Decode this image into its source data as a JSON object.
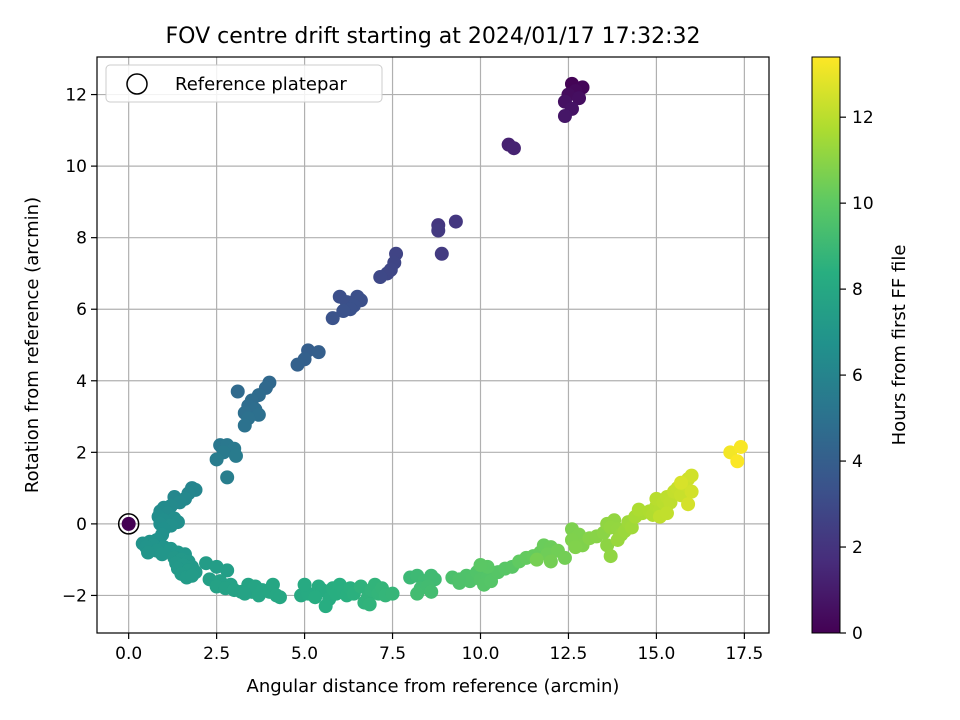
{
  "chart_data": {
    "type": "scatter",
    "title": "FOV centre drift starting at 2024/01/17 17:32:32",
    "xlabel": "Angular distance from reference (arcmin)",
    "ylabel": "Rotation from reference (arcmin)",
    "xlim": [
      -0.9,
      18.2
    ],
    "ylim": [
      -3.05,
      13.05
    ],
    "xticks": [
      0.0,
      2.5,
      5.0,
      7.5,
      10.0,
      12.5,
      15.0,
      17.5
    ],
    "xtick_labels": [
      "0.0",
      "2.5",
      "5.0",
      "7.5",
      "10.0",
      "12.5",
      "15.0",
      "17.5"
    ],
    "yticks": [
      -2,
      0,
      2,
      4,
      6,
      8,
      10,
      12
    ],
    "ytick_labels": [
      "−2",
      "0",
      "2",
      "4",
      "6",
      "8",
      "10",
      "12"
    ],
    "grid": true,
    "legend": {
      "placement": "top-left",
      "entries": [
        "Reference platepar"
      ]
    },
    "colorbar": {
      "label": "Hours from first FF file",
      "colormap": "viridis",
      "range": [
        0,
        13.4
      ],
      "ticks": [
        0,
        2,
        4,
        6,
        8,
        10,
        12
      ],
      "tick_labels": [
        "0",
        "2",
        "4",
        "6",
        "8",
        "10",
        "12"
      ]
    },
    "reference_point": {
      "x": 0.0,
      "y": 0.0,
      "hours": 0.0
    },
    "points": [
      {
        "x": 12.6,
        "y": 12.3,
        "h": 0.1
      },
      {
        "x": 12.9,
        "y": 12.2,
        "h": 0.2
      },
      {
        "x": 12.7,
        "y": 12.1,
        "h": 0.3
      },
      {
        "x": 12.5,
        "y": 12.0,
        "h": 0.4
      },
      {
        "x": 12.8,
        "y": 11.9,
        "h": 0.5
      },
      {
        "x": 12.4,
        "y": 11.8,
        "h": 0.6
      },
      {
        "x": 12.6,
        "y": 11.6,
        "h": 0.7
      },
      {
        "x": 12.4,
        "y": 11.4,
        "h": 0.8
      },
      {
        "x": 10.8,
        "y": 10.6,
        "h": 1.2
      },
      {
        "x": 10.95,
        "y": 10.5,
        "h": 1.3
      },
      {
        "x": 8.8,
        "y": 8.35,
        "h": 2.1
      },
      {
        "x": 9.3,
        "y": 8.45,
        "h": 2.15
      },
      {
        "x": 8.8,
        "y": 8.2,
        "h": 2.2
      },
      {
        "x": 8.9,
        "y": 7.55,
        "h": 2.3
      },
      {
        "x": 7.6,
        "y": 7.55,
        "h": 2.7
      },
      {
        "x": 7.55,
        "y": 7.3,
        "h": 2.75
      },
      {
        "x": 7.45,
        "y": 7.1,
        "h": 2.8
      },
      {
        "x": 7.35,
        "y": 7.0,
        "h": 2.85
      },
      {
        "x": 7.15,
        "y": 6.9,
        "h": 2.9
      },
      {
        "x": 6.0,
        "y": 6.35,
        "h": 3.2
      },
      {
        "x": 6.5,
        "y": 6.35,
        "h": 3.22
      },
      {
        "x": 6.2,
        "y": 6.2,
        "h": 3.25
      },
      {
        "x": 6.6,
        "y": 6.25,
        "h": 3.28
      },
      {
        "x": 6.4,
        "y": 6.1,
        "h": 3.3
      },
      {
        "x": 6.3,
        "y": 6.0,
        "h": 3.32
      },
      {
        "x": 6.1,
        "y": 5.95,
        "h": 3.35
      },
      {
        "x": 5.8,
        "y": 5.75,
        "h": 3.4
      },
      {
        "x": 5.1,
        "y": 4.85,
        "h": 4.0
      },
      {
        "x": 5.4,
        "y": 4.8,
        "h": 4.05
      },
      {
        "x": 5.0,
        "y": 4.6,
        "h": 4.1
      },
      {
        "x": 4.8,
        "y": 4.45,
        "h": 4.15
      },
      {
        "x": 4.0,
        "y": 3.95,
        "h": 4.5
      },
      {
        "x": 3.9,
        "y": 3.8,
        "h": 4.55
      },
      {
        "x": 3.1,
        "y": 3.7,
        "h": 4.6
      },
      {
        "x": 3.7,
        "y": 3.6,
        "h": 4.65
      },
      {
        "x": 3.5,
        "y": 3.45,
        "h": 4.7
      },
      {
        "x": 3.4,
        "y": 3.3,
        "h": 4.75
      },
      {
        "x": 3.6,
        "y": 3.2,
        "h": 4.8
      },
      {
        "x": 3.3,
        "y": 3.1,
        "h": 4.85
      },
      {
        "x": 3.7,
        "y": 3.05,
        "h": 4.9
      },
      {
        "x": 3.4,
        "y": 2.95,
        "h": 4.95
      },
      {
        "x": 3.3,
        "y": 2.75,
        "h": 5.0
      },
      {
        "x": 2.6,
        "y": 2.2,
        "h": 5.3
      },
      {
        "x": 2.8,
        "y": 2.2,
        "h": 5.35
      },
      {
        "x": 3.0,
        "y": 2.1,
        "h": 5.4
      },
      {
        "x": 2.7,
        "y": 2.0,
        "h": 5.45
      },
      {
        "x": 3.05,
        "y": 1.9,
        "h": 5.5
      },
      {
        "x": 2.5,
        "y": 1.8,
        "h": 5.55
      },
      {
        "x": 2.8,
        "y": 1.3,
        "h": 5.7
      },
      {
        "x": 1.8,
        "y": 1.0,
        "h": 6.0
      },
      {
        "x": 1.9,
        "y": 0.95,
        "h": 6.05
      },
      {
        "x": 1.7,
        "y": 0.85,
        "h": 6.1
      },
      {
        "x": 1.3,
        "y": 0.75,
        "h": 6.15
      },
      {
        "x": 1.6,
        "y": 0.7,
        "h": 6.2
      },
      {
        "x": 1.45,
        "y": 0.6,
        "h": 6.25
      },
      {
        "x": 1.2,
        "y": 0.5,
        "h": 6.3
      },
      {
        "x": 1.0,
        "y": 0.45,
        "h": 6.35
      },
      {
        "x": 0.9,
        "y": 0.35,
        "h": 6.4
      },
      {
        "x": 1.1,
        "y": 0.3,
        "h": 6.45
      },
      {
        "x": 0.85,
        "y": 0.2,
        "h": 6.5
      },
      {
        "x": 1.3,
        "y": 0.15,
        "h": 6.52
      },
      {
        "x": 1.0,
        "y": 0.1,
        "h": 6.55
      },
      {
        "x": 1.4,
        "y": 0.05,
        "h": 6.58
      },
      {
        "x": 0.9,
        "y": 0.0,
        "h": 6.6
      },
      {
        "x": 1.2,
        "y": -0.05,
        "h": 6.62
      },
      {
        "x": 1.0,
        "y": -0.15,
        "h": 6.65
      },
      {
        "x": 0.95,
        "y": -0.3,
        "h": 6.7
      },
      {
        "x": 0.8,
        "y": -0.45,
        "h": 6.75
      },
      {
        "x": 0.6,
        "y": -0.5,
        "h": 6.8
      },
      {
        "x": 0.4,
        "y": -0.55,
        "h": 6.82
      },
      {
        "x": 0.7,
        "y": -0.6,
        "h": 6.85
      },
      {
        "x": 0.5,
        "y": -0.65,
        "h": 6.88
      },
      {
        "x": 1.0,
        "y": -0.65,
        "h": 6.9
      },
      {
        "x": 0.8,
        "y": -0.75,
        "h": 6.92
      },
      {
        "x": 0.55,
        "y": -0.8,
        "h": 6.95
      },
      {
        "x": 0.95,
        "y": -0.85,
        "h": 6.97
      },
      {
        "x": 1.2,
        "y": -0.7,
        "h": 7.0
      },
      {
        "x": 1.4,
        "y": -0.8,
        "h": 7.02
      },
      {
        "x": 1.6,
        "y": -0.85,
        "h": 7.04
      },
      {
        "x": 1.3,
        "y": -0.95,
        "h": 7.06
      },
      {
        "x": 1.5,
        "y": -1.0,
        "h": 7.08
      },
      {
        "x": 1.7,
        "y": -1.05,
        "h": 7.1
      },
      {
        "x": 1.35,
        "y": -1.1,
        "h": 7.12
      },
      {
        "x": 1.55,
        "y": -1.15,
        "h": 7.14
      },
      {
        "x": 1.8,
        "y": -1.2,
        "h": 7.16
      },
      {
        "x": 1.4,
        "y": -1.25,
        "h": 7.18
      },
      {
        "x": 1.7,
        "y": -1.3,
        "h": 7.2
      },
      {
        "x": 1.9,
        "y": -1.35,
        "h": 7.22
      },
      {
        "x": 1.5,
        "y": -1.4,
        "h": 7.24
      },
      {
        "x": 1.65,
        "y": -1.5,
        "h": 7.26
      },
      {
        "x": 1.8,
        "y": -1.45,
        "h": 7.28
      },
      {
        "x": 2.2,
        "y": -1.1,
        "h": 7.35
      },
      {
        "x": 2.5,
        "y": -1.2,
        "h": 7.4
      },
      {
        "x": 2.8,
        "y": -1.3,
        "h": 7.45
      },
      {
        "x": 2.3,
        "y": -1.55,
        "h": 7.5
      },
      {
        "x": 2.6,
        "y": -1.6,
        "h": 7.55
      },
      {
        "x": 2.9,
        "y": -1.7,
        "h": 7.6
      },
      {
        "x": 2.5,
        "y": -1.75,
        "h": 7.62
      },
      {
        "x": 2.75,
        "y": -1.8,
        "h": 7.65
      },
      {
        "x": 3.0,
        "y": -1.85,
        "h": 7.68
      },
      {
        "x": 3.2,
        "y": -1.9,
        "h": 7.7
      },
      {
        "x": 3.4,
        "y": -1.7,
        "h": 7.75
      },
      {
        "x": 3.6,
        "y": -1.75,
        "h": 7.8
      },
      {
        "x": 3.5,
        "y": -1.9,
        "h": 7.82
      },
      {
        "x": 3.8,
        "y": -1.85,
        "h": 7.85
      },
      {
        "x": 3.7,
        "y": -2.0,
        "h": 7.88
      },
      {
        "x": 4.0,
        "y": -1.9,
        "h": 7.9
      },
      {
        "x": 4.1,
        "y": -1.7,
        "h": 7.92
      },
      {
        "x": 4.2,
        "y": -2.0,
        "h": 7.95
      },
      {
        "x": 4.3,
        "y": -2.05,
        "h": 7.98
      },
      {
        "x": 3.3,
        "y": -1.95,
        "h": 7.72
      },
      {
        "x": 4.9,
        "y": -2.0,
        "h": 8.1
      },
      {
        "x": 5.1,
        "y": -1.95,
        "h": 8.12
      },
      {
        "x": 5.0,
        "y": -1.7,
        "h": 8.15
      },
      {
        "x": 5.4,
        "y": -1.75,
        "h": 8.2
      },
      {
        "x": 5.5,
        "y": -1.85,
        "h": 8.22
      },
      {
        "x": 5.3,
        "y": -2.05,
        "h": 8.25
      },
      {
        "x": 5.7,
        "y": -2.1,
        "h": 8.28
      },
      {
        "x": 5.6,
        "y": -2.3,
        "h": 8.3
      },
      {
        "x": 5.8,
        "y": -1.8,
        "h": 8.32
      },
      {
        "x": 5.9,
        "y": -1.95,
        "h": 8.35
      },
      {
        "x": 6.0,
        "y": -1.7,
        "h": 8.38
      },
      {
        "x": 6.1,
        "y": -1.9,
        "h": 8.4
      },
      {
        "x": 6.2,
        "y": -2.0,
        "h": 8.42
      },
      {
        "x": 6.3,
        "y": -1.8,
        "h": 8.45
      },
      {
        "x": 6.4,
        "y": -1.95,
        "h": 8.48
      },
      {
        "x": 6.6,
        "y": -1.75,
        "h": 8.6
      },
      {
        "x": 6.7,
        "y": -2.2,
        "h": 8.62
      },
      {
        "x": 6.8,
        "y": -2.05,
        "h": 8.65
      },
      {
        "x": 6.9,
        "y": -1.85,
        "h": 8.68
      },
      {
        "x": 7.0,
        "y": -1.7,
        "h": 8.7
      },
      {
        "x": 7.1,
        "y": -1.95,
        "h": 8.72
      },
      {
        "x": 7.2,
        "y": -1.8,
        "h": 8.75
      },
      {
        "x": 7.3,
        "y": -2.0,
        "h": 8.78
      },
      {
        "x": 7.5,
        "y": -1.95,
        "h": 8.8
      },
      {
        "x": 6.85,
        "y": -2.25,
        "h": 8.66
      },
      {
        "x": 8.0,
        "y": -1.5,
        "h": 9.0
      },
      {
        "x": 8.2,
        "y": -1.45,
        "h": 9.05
      },
      {
        "x": 8.4,
        "y": -1.6,
        "h": 9.1
      },
      {
        "x": 8.6,
        "y": -1.45,
        "h": 9.12
      },
      {
        "x": 8.7,
        "y": -1.55,
        "h": 9.15
      },
      {
        "x": 8.3,
        "y": -1.8,
        "h": 9.18
      },
      {
        "x": 8.5,
        "y": -1.75,
        "h": 9.2
      },
      {
        "x": 8.2,
        "y": -1.95,
        "h": 9.22
      },
      {
        "x": 8.6,
        "y": -1.9,
        "h": 9.25
      },
      {
        "x": 9.2,
        "y": -1.5,
        "h": 9.5
      },
      {
        "x": 9.4,
        "y": -1.65,
        "h": 9.55
      },
      {
        "x": 9.6,
        "y": -1.45,
        "h": 9.6
      },
      {
        "x": 9.7,
        "y": -1.6,
        "h": 9.62
      },
      {
        "x": 9.9,
        "y": -1.35,
        "h": 9.65
      },
      {
        "x": 10.0,
        "y": -1.55,
        "h": 9.7
      },
      {
        "x": 10.2,
        "y": -1.5,
        "h": 9.72
      },
      {
        "x": 10.1,
        "y": -1.7,
        "h": 9.75
      },
      {
        "x": 10.3,
        "y": -1.6,
        "h": 9.78
      },
      {
        "x": 10.5,
        "y": -1.35,
        "h": 9.8
      },
      {
        "x": 10.7,
        "y": -1.25,
        "h": 9.85
      },
      {
        "x": 10.9,
        "y": -1.2,
        "h": 9.88
      },
      {
        "x": 10.2,
        "y": -1.2,
        "h": 9.9
      },
      {
        "x": 10.0,
        "y": -1.15,
        "h": 9.92
      },
      {
        "x": 9.4,
        "y": -1.55,
        "h": 9.57
      },
      {
        "x": 11.1,
        "y": -1.05,
        "h": 10.1
      },
      {
        "x": 11.3,
        "y": -0.95,
        "h": 10.15
      },
      {
        "x": 11.5,
        "y": -0.9,
        "h": 10.2
      },
      {
        "x": 11.7,
        "y": -0.8,
        "h": 10.25
      },
      {
        "x": 11.8,
        "y": -0.6,
        "h": 10.3
      },
      {
        "x": 12.0,
        "y": -0.65,
        "h": 10.35
      },
      {
        "x": 11.9,
        "y": -0.85,
        "h": 10.4
      },
      {
        "x": 12.2,
        "y": -0.75,
        "h": 10.45
      },
      {
        "x": 12.4,
        "y": -0.95,
        "h": 10.5
      },
      {
        "x": 12.0,
        "y": -1.05,
        "h": 10.52
      },
      {
        "x": 11.6,
        "y": -1.0,
        "h": 10.55
      },
      {
        "x": 12.6,
        "y": -0.15,
        "h": 10.7
      },
      {
        "x": 12.8,
        "y": -0.3,
        "h": 10.72
      },
      {
        "x": 12.6,
        "y": -0.45,
        "h": 10.75
      },
      {
        "x": 12.9,
        "y": -0.6,
        "h": 10.78
      },
      {
        "x": 12.7,
        "y": -0.65,
        "h": 10.8
      },
      {
        "x": 13.1,
        "y": -0.4,
        "h": 10.9
      },
      {
        "x": 13.3,
        "y": -0.35,
        "h": 10.95
      },
      {
        "x": 13.5,
        "y": -0.25,
        "h": 11.0
      },
      {
        "x": 13.6,
        "y": -0.6,
        "h": 11.05
      },
      {
        "x": 13.7,
        "y": -0.9,
        "h": 11.1
      },
      {
        "x": 13.6,
        "y": 0.0,
        "h": 11.12
      },
      {
        "x": 13.8,
        "y": 0.1,
        "h": 11.15
      },
      {
        "x": 13.7,
        "y": -0.1,
        "h": 11.18
      },
      {
        "x": 13.9,
        "y": -0.15,
        "h": 11.2
      },
      {
        "x": 14.0,
        "y": -0.3,
        "h": 11.25
      },
      {
        "x": 13.9,
        "y": -0.45,
        "h": 11.3
      },
      {
        "x": 14.1,
        "y": -0.2,
        "h": 11.35
      },
      {
        "x": 14.2,
        "y": 0.05,
        "h": 11.4
      },
      {
        "x": 14.3,
        "y": -0.1,
        "h": 11.45
      },
      {
        "x": 14.4,
        "y": 0.2,
        "h": 11.6
      },
      {
        "x": 14.6,
        "y": 0.3,
        "h": 11.65
      },
      {
        "x": 14.5,
        "y": 0.4,
        "h": 11.7
      },
      {
        "x": 14.8,
        "y": 0.35,
        "h": 11.75
      },
      {
        "x": 14.9,
        "y": 0.25,
        "h": 11.8
      },
      {
        "x": 15.0,
        "y": 0.5,
        "h": 11.85
      },
      {
        "x": 15.1,
        "y": 0.4,
        "h": 11.9
      },
      {
        "x": 15.0,
        "y": 0.7,
        "h": 11.95
      },
      {
        "x": 15.2,
        "y": 0.6,
        "h": 12.0
      },
      {
        "x": 15.3,
        "y": 0.75,
        "h": 12.05
      },
      {
        "x": 15.4,
        "y": 0.6,
        "h": 12.1
      },
      {
        "x": 15.1,
        "y": 0.2,
        "h": 12.12
      },
      {
        "x": 15.3,
        "y": 0.3,
        "h": 12.15
      },
      {
        "x": 15.5,
        "y": 0.9,
        "h": 12.2
      },
      {
        "x": 15.6,
        "y": 1.0,
        "h": 12.25
      },
      {
        "x": 15.7,
        "y": 0.8,
        "h": 12.3
      },
      {
        "x": 15.8,
        "y": 1.1,
        "h": 12.35
      },
      {
        "x": 15.9,
        "y": 1.25,
        "h": 12.4
      },
      {
        "x": 16.0,
        "y": 1.35,
        "h": 12.45
      },
      {
        "x": 16.0,
        "y": 0.9,
        "h": 12.5
      },
      {
        "x": 15.9,
        "y": 0.55,
        "h": 12.55
      },
      {
        "x": 15.7,
        "y": 1.15,
        "h": 12.6
      },
      {
        "x": 17.1,
        "y": 2.0,
        "h": 13.2
      },
      {
        "x": 17.4,
        "y": 2.15,
        "h": 13.3
      },
      {
        "x": 17.3,
        "y": 1.75,
        "h": 13.35
      }
    ]
  }
}
